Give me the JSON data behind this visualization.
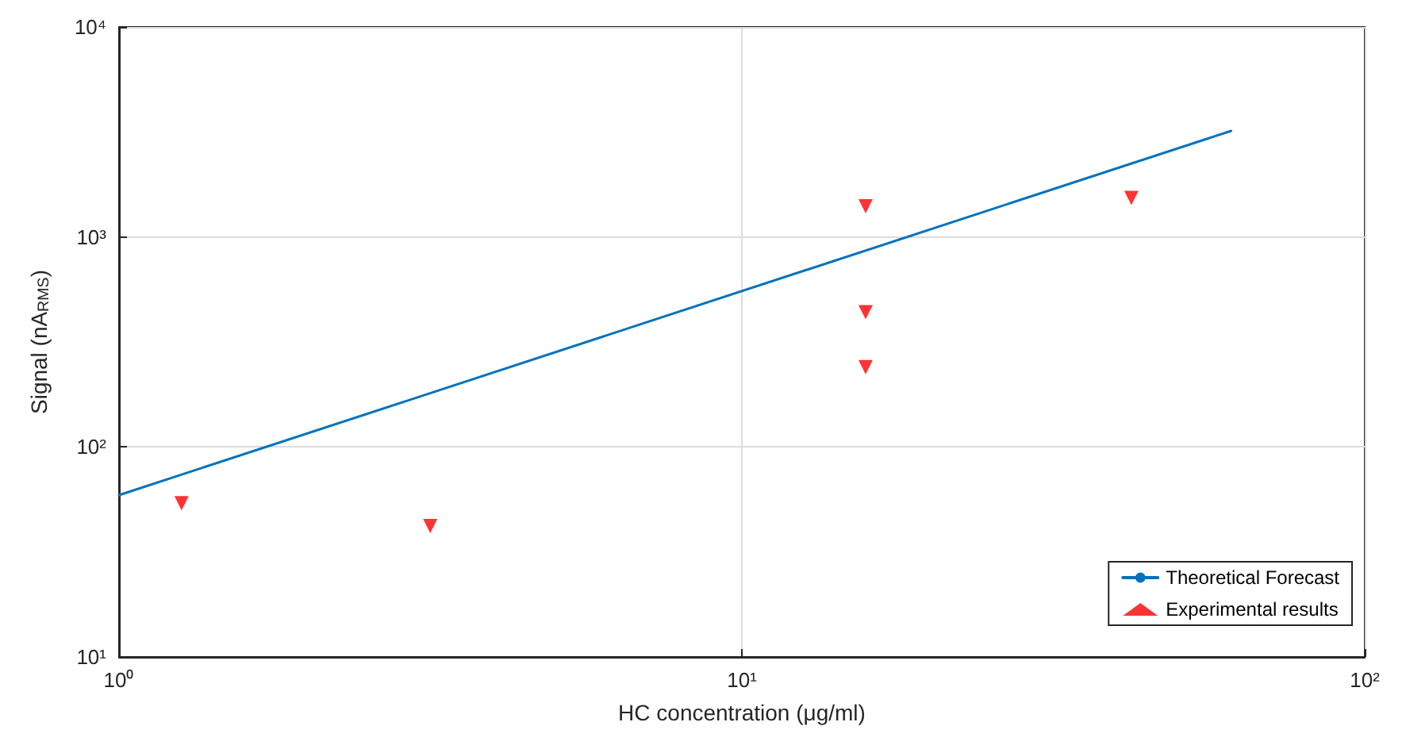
{
  "chart_data": {
    "type": "scatter",
    "xlabel": "HC concentration (μg/ml)",
    "ylabel": "Signal (nA$_{RMS}$)",
    "log": "xy",
    "grid": true,
    "legend": "bottom right",
    "xlim": [
      1,
      100
    ],
    "ylim": [
      10,
      10000
    ],
    "xticks": [
      {
        "value": 1,
        "label": "10⁰"
      },
      {
        "value": 10,
        "label": "10¹"
      },
      {
        "value": 100,
        "label": "10²"
      }
    ],
    "yticks": [
      {
        "value": 10,
        "label": "10¹"
      },
      {
        "value": 100,
        "label": "10²"
      },
      {
        "value": 1000,
        "label": "10³"
      },
      {
        "value": 10000,
        "label": "10⁴"
      }
    ],
    "series": [
      {
        "name": "Theoretical Forecast",
        "type": "line",
        "color": "#0072bd",
        "marker": "none",
        "line_style": "solid",
        "x": [
          1,
          61
        ],
        "values": [
          59,
          3200
        ]
      },
      {
        "name": "Experimental results",
        "type": "scatter",
        "color": "#ff0000",
        "marker": "triangle",
        "x": [
          1.26,
          3.16,
          15.8,
          15.8,
          15.8,
          42.2
        ],
        "values": [
          54,
          42,
          1400,
          438,
          240,
          1535
        ]
      }
    ]
  }
}
